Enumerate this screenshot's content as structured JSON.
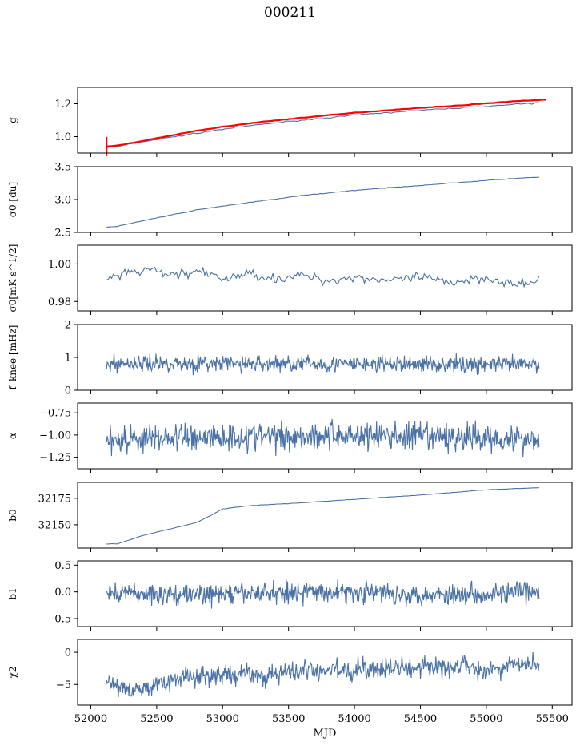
{
  "figure": {
    "title": "000211"
  },
  "chart_data": {
    "type": "line",
    "x_range": [
      51900,
      55650
    ],
    "x_ticks": [
      52000,
      52500,
      53000,
      53500,
      54000,
      54500,
      55000,
      55500
    ],
    "xlabel": "MJD",
    "line_color": "#4a72a6",
    "x_start": 52120,
    "x_end": 55400,
    "panels": [
      {
        "ylabel": "g",
        "ylim": [
          0.9,
          1.3
        ],
        "yticks": [
          1.0,
          1.2
        ],
        "ytick_labels": [
          "1.0",
          "1.2"
        ],
        "series": [
          {
            "points": [
              [
                52120,
                0.935
              ],
              [
                52200,
                0.94
              ],
              [
                52400,
                0.97
              ],
              [
                52600,
                0.995
              ],
              [
                52800,
                1.02
              ],
              [
                53000,
                1.045
              ],
              [
                53300,
                1.075
              ],
              [
                53600,
                1.1
              ],
              [
                54000,
                1.13
              ],
              [
                54400,
                1.155
              ],
              [
                54800,
                1.175
              ],
              [
                55200,
                1.195
              ],
              [
                55400,
                1.205
              ]
            ]
          },
          {
            "color": "#ff0000",
            "points": [
              [
                52120,
                0.94
              ],
              [
                52200,
                0.945
              ],
              [
                52400,
                0.975
              ],
              [
                52600,
                1.005
              ],
              [
                52800,
                1.035
              ],
              [
                53000,
                1.06
              ],
              [
                53300,
                1.09
              ],
              [
                53600,
                1.115
              ],
              [
                54000,
                1.145
              ],
              [
                54400,
                1.17
              ],
              [
                54800,
                1.19
              ],
              [
                55200,
                1.215
              ],
              [
                55450,
                1.225
              ]
            ]
          }
        ]
      },
      {
        "ylabel": "σ0 [du]",
        "ylim": [
          2.5,
          3.5
        ],
        "yticks": [
          2.5,
          3.0,
          3.5
        ],
        "ytick_labels": [
          "2.5",
          "3.0",
          "3.5"
        ],
        "series": [
          {
            "points": [
              [
                52120,
                2.58
              ],
              [
                52200,
                2.59
              ],
              [
                52400,
                2.68
              ],
              [
                52600,
                2.76
              ],
              [
                52800,
                2.84
              ],
              [
                53000,
                2.9
              ],
              [
                53300,
                2.98
              ],
              [
                53600,
                3.06
              ],
              [
                54000,
                3.14
              ],
              [
                54400,
                3.2
              ],
              [
                54800,
                3.26
              ],
              [
                55200,
                3.32
              ],
              [
                55400,
                3.34
              ]
            ]
          }
        ]
      },
      {
        "ylabel": "σ0[mK s^1/2]",
        "ylim": [
          0.975,
          1.01
        ],
        "yticks": [
          0.98,
          1.0
        ],
        "ytick_labels": [
          "0.98",
          "1.00"
        ],
        "series": [
          {
            "points": [
              [
                52120,
                0.992
              ],
              [
                52300,
                0.995
              ],
              [
                52450,
                0.997
              ],
              [
                52600,
                0.994
              ],
              [
                52800,
                0.996
              ],
              [
                53000,
                0.992
              ],
              [
                53200,
                0.995
              ],
              [
                53400,
                0.992
              ],
              [
                53600,
                0.994
              ],
              [
                53800,
                0.991
              ],
              [
                54000,
                0.993
              ],
              [
                54300,
                0.991
              ],
              [
                54500,
                0.993
              ],
              [
                54700,
                0.99
              ],
              [
                55000,
                0.993
              ],
              [
                55200,
                0.989
              ],
              [
                55400,
                0.99
              ]
            ]
          }
        ]
      },
      {
        "ylabel": "f_knee [mHz]",
        "ylim": [
          0,
          2
        ],
        "yticks": [
          0,
          1,
          2
        ],
        "ytick_labels": [
          "0",
          "1",
          "2"
        ],
        "series": [
          {
            "points": [
              [
                52120,
                0.8
              ],
              [
                52500,
                0.82
              ],
              [
                53000,
                0.8
              ],
              [
                53500,
                0.81
              ],
              [
                54000,
                0.79
              ],
              [
                54500,
                0.8
              ],
              [
                55000,
                0.78
              ],
              [
                55400,
                0.77
              ]
            ]
          }
        ]
      },
      {
        "ylabel": "α",
        "ylim": [
          -1.38,
          -0.64
        ],
        "yticks": [
          -1.25,
          -1.0,
          -0.75
        ],
        "ytick_labels": [
          "−1.25",
          "−1.00",
          "−0.75"
        ],
        "series": [
          {
            "points": [
              [
                52120,
                -1.05
              ],
              [
                52500,
                -1.03
              ],
              [
                53000,
                -1.02
              ],
              [
                53500,
                -1.01
              ],
              [
                54000,
                -1.0
              ],
              [
                54500,
                -1.02
              ],
              [
                55000,
                -1.03
              ],
              [
                55400,
                -1.05
              ]
            ]
          }
        ]
      },
      {
        "ylabel": "b0",
        "ylim": [
          32128,
          32190
        ],
        "yticks": [
          32150,
          32175
        ],
        "ytick_labels": [
          "32150",
          "32175"
        ],
        "series": [
          {
            "points": [
              [
                52120,
                32132
              ],
              [
                52200,
                32132
              ],
              [
                52400,
                32140
              ],
              [
                52600,
                32146
              ],
              [
                52800,
                32152
              ],
              [
                52900,
                32158
              ],
              [
                53000,
                32165
              ],
              [
                53200,
                32168
              ],
              [
                53500,
                32170
              ],
              [
                54000,
                32174
              ],
              [
                54500,
                32178
              ],
              [
                55000,
                32183
              ],
              [
                55400,
                32185
              ]
            ]
          }
        ]
      },
      {
        "ylabel": "b1",
        "ylim": [
          -0.65,
          0.58
        ],
        "yticks": [
          -0.5,
          0.0,
          0.5
        ],
        "ytick_labels": [
          "−0.5",
          "0.0",
          "0.5"
        ],
        "series": [
          {
            "points": [
              [
                52120,
                0.0
              ],
              [
                52500,
                -0.05
              ],
              [
                53000,
                -0.05
              ],
              [
                53500,
                0.0
              ],
              [
                54000,
                0.0
              ],
              [
                54500,
                -0.05
              ],
              [
                55000,
                -0.03
              ],
              [
                55400,
                0.0
              ]
            ]
          }
        ]
      },
      {
        "ylabel": "χ2",
        "ylim": [
          -8.2,
          2.0
        ],
        "yticks": [
          -5,
          0
        ],
        "ytick_labels": [
          "−5",
          "0"
        ],
        "series": [
          {
            "points": [
              [
                52120,
                -4.8
              ],
              [
                52300,
                -6.2
              ],
              [
                52500,
                -4.5
              ],
              [
                52800,
                -3.8
              ],
              [
                53000,
                -3.6
              ],
              [
                53500,
                -3.2
              ],
              [
                54000,
                -2.8
              ],
              [
                54500,
                -2.4
              ],
              [
                55000,
                -2.2
              ],
              [
                55400,
                -2.0
              ]
            ]
          }
        ]
      }
    ]
  }
}
